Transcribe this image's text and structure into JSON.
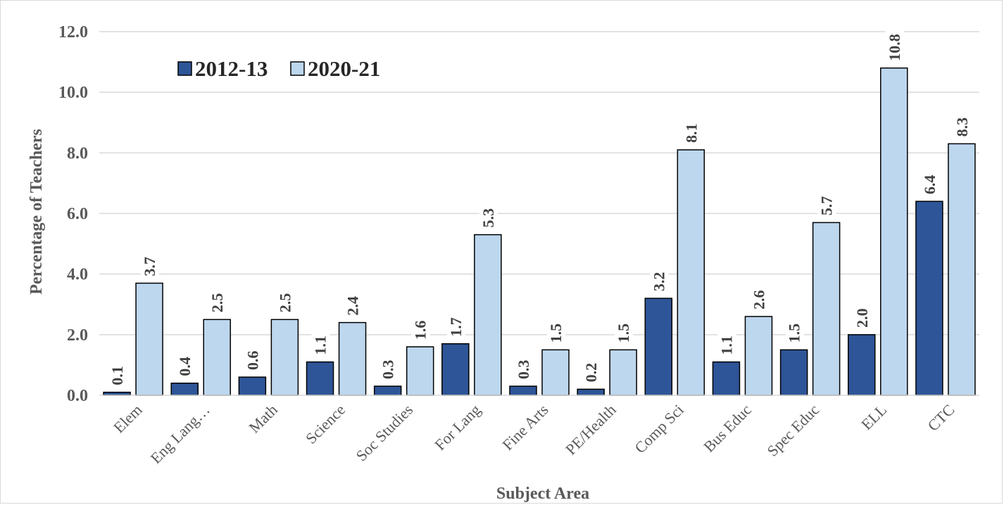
{
  "chart_data": {
    "type": "bar",
    "title": "",
    "xlabel": "Subject Area",
    "ylabel": "Percentage of Teachers",
    "ylim": [
      0,
      12
    ],
    "yticks": [
      "0.0",
      "2.0",
      "4.0",
      "6.0",
      "8.0",
      "10.0",
      "12.0"
    ],
    "grid": true,
    "legend_position": "top-left",
    "categories": [
      "Elem",
      "Eng Lang…",
      "Math",
      "Science",
      "Soc Studies",
      "For Lang",
      "Fine Arts",
      "PE/Health",
      "Comp Sci",
      "Bus Educ",
      "Spec Educ",
      "ELL",
      "CTC"
    ],
    "series": [
      {
        "name": "2012-13",
        "color": "#2e5597",
        "values": [
          0.1,
          0.4,
          0.6,
          1.1,
          0.3,
          1.7,
          0.3,
          0.2,
          3.2,
          1.1,
          1.5,
          2.0,
          6.4
        ],
        "labels": [
          "0.1",
          "0.4",
          "0.6",
          "1.1",
          "0.3",
          "1.7",
          "0.3",
          "0.2",
          "3.2",
          "1.1",
          "1.5",
          "2.0",
          "6.4"
        ]
      },
      {
        "name": "2020-21",
        "color": "#bdd7ee",
        "values": [
          3.7,
          2.5,
          2.5,
          2.4,
          1.6,
          5.3,
          1.5,
          1.5,
          8.1,
          2.6,
          5.7,
          10.8,
          8.3
        ],
        "labels": [
          "3.7",
          "2.5",
          "2.5",
          "2.4",
          "1.6",
          "5.3",
          "1.5",
          "1.5",
          "8.1",
          "2.6",
          "5.7",
          "10.8",
          "8.3"
        ]
      }
    ]
  }
}
